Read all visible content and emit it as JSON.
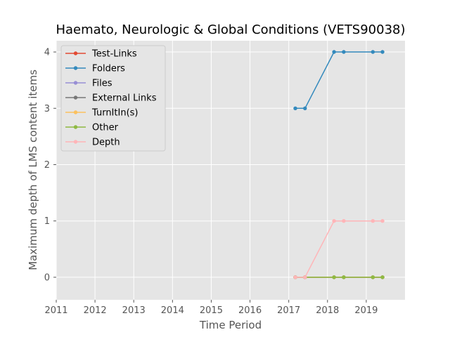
{
  "chart_data": {
    "type": "line",
    "title": "Haemato, Neurologic & Global Conditions (VETS90038)",
    "xlabel": "Time Period",
    "ylabel": "Maximum depth of LMS content items",
    "xlim": [
      2011,
      2020
    ],
    "ylim": [
      -0.4,
      4.2
    ],
    "x_ticks": [
      "2011",
      "2012",
      "2013",
      "2014",
      "2015",
      "2016",
      "2017",
      "2018",
      "2019"
    ],
    "y_ticks": [
      "0",
      "1",
      "2",
      "3",
      "4"
    ],
    "grid": true,
    "legend_position": "top-left",
    "x": [
      2017.17,
      2017.42,
      2018.17,
      2018.42,
      2019.17,
      2019.42
    ],
    "series": [
      {
        "name": "Test-Links",
        "color": "#E24A33",
        "values": [
          0,
          0,
          0,
          0,
          0,
          0
        ]
      },
      {
        "name": "Folders",
        "color": "#348ABD",
        "values": [
          3,
          3,
          4,
          4,
          4,
          4
        ]
      },
      {
        "name": "Files",
        "color": "#988ED5",
        "values": [
          0,
          0,
          0,
          0,
          0,
          0
        ]
      },
      {
        "name": "External Links",
        "color": "#777777",
        "values": [
          0,
          0,
          0,
          0,
          0,
          0
        ]
      },
      {
        "name": "TurnItIn(s)",
        "color": "#FBC15E",
        "values": [
          0,
          0,
          0,
          0,
          0,
          0
        ]
      },
      {
        "name": "Other",
        "color": "#8EBA42",
        "values": [
          0,
          0,
          0,
          0,
          0,
          0
        ]
      },
      {
        "name": "Depth",
        "color": "#FFB5B8",
        "values": [
          0,
          0,
          1,
          1,
          1,
          1
        ]
      }
    ]
  }
}
